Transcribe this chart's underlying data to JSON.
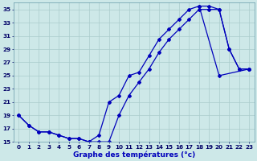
{
  "xlabel": "Graphe des températures (°c)",
  "background_color": "#cde8e8",
  "grid_color": "#aacccc",
  "line_color": "#0000bb",
  "line_width": 0.9,
  "marker": "D",
  "marker_size": 2.0,
  "ylim": [
    15,
    36
  ],
  "xlim": [
    -0.5,
    23.5
  ],
  "yticks": [
    15,
    17,
    19,
    21,
    23,
    25,
    27,
    29,
    31,
    33,
    35
  ],
  "xticks": [
    0,
    1,
    2,
    3,
    4,
    5,
    6,
    7,
    8,
    9,
    10,
    11,
    12,
    13,
    14,
    15,
    16,
    17,
    18,
    19,
    20,
    21,
    22,
    23
  ],
  "tick_fontsize": 5.2,
  "xlabel_fontsize": 6.5,
  "curve1_x": [
    0,
    1,
    2,
    3,
    4,
    5,
    6,
    7,
    8,
    9,
    10,
    11,
    12,
    13,
    14,
    15,
    16,
    17,
    18,
    19,
    20,
    21,
    22,
    23
  ],
  "curve1_y": [
    19,
    17.5,
    16.5,
    16.5,
    16.0,
    15.5,
    15.5,
    15.0,
    15.0,
    15.0,
    19.0,
    22.0,
    24.0,
    26.0,
    28.5,
    30.5,
    32.0,
    33.5,
    35.0,
    35.0,
    35.0,
    29.0,
    26.0,
    26.0
  ],
  "curve2_x": [
    0,
    1,
    2,
    3,
    4,
    5,
    6,
    7,
    8,
    9,
    10,
    11,
    12,
    13,
    14,
    15,
    16,
    17,
    18,
    19,
    20,
    21,
    22,
    23
  ],
  "curve2_y": [
    19,
    17.5,
    16.5,
    16.5,
    16.0,
    15.5,
    15.5,
    15.0,
    16.0,
    21.0,
    22.0,
    25.0,
    25.5,
    28.0,
    30.5,
    32.0,
    33.5,
    35.0,
    35.5,
    35.5,
    35.0,
    29.0,
    26.0,
    26.0
  ],
  "curve3_x": [
    18,
    20,
    23
  ],
  "curve3_y": [
    35.5,
    25.0,
    26.0
  ]
}
